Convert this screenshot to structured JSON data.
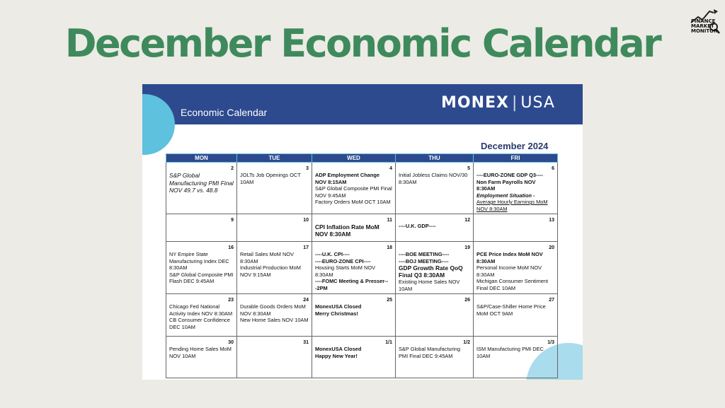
{
  "slide": {
    "title": "December Economic Calendar",
    "logo_lines": [
      "FINANCE",
      "MARKET",
      "MONITOR"
    ]
  },
  "document": {
    "banner_title": "Economic Calendar",
    "brand_left": "MONEX",
    "brand_right": "USA",
    "month_label": "December 2024",
    "weekdays": [
      "MON",
      "TUE",
      "WED",
      "THU",
      "FRI"
    ],
    "weeks": [
      [
        {
          "day": "2",
          "events": [
            "S&P Global Manufacturing PMI Final NOV 49.7 vs. 48.8"
          ]
        },
        {
          "day": "3",
          "events": [
            "JOLTs Job Openings OCT 10AM"
          ]
        },
        {
          "day": "4",
          "events": [
            "ADP Employment Change NOV 8:15AM",
            "S&P Global Composite PMI Final NOV 9:45AM",
            "Factory Orders MoM OCT 10AM"
          ]
        },
        {
          "day": "5",
          "events": [
            "Initial Jobless Claims NOV/30 8:30AM"
          ]
        },
        {
          "day": "6",
          "events": [
            "----EURO-ZONE GDP Q3----",
            "Non Farm Payrolls NOV 8:30AM",
            "Employment Situation -",
            "Average Hourly Earnings MoM NOV 8:30AM"
          ]
        }
      ],
      [
        {
          "day": "9",
          "events": []
        },
        {
          "day": "10",
          "events": []
        },
        {
          "day": "11",
          "events": [
            "CPI Inflation Rate MoM NOV 8:30AM"
          ]
        },
        {
          "day": "12",
          "events": [
            "----U.K. GDP----"
          ]
        },
        {
          "day": "13",
          "events": []
        }
      ],
      [
        {
          "day": "16",
          "events": [
            "NY Empire State Manufacturing Index DEC 8:30AM",
            "S&P Global Composite PMI Flash DEC 9:45AM"
          ]
        },
        {
          "day": "17",
          "events": [
            "Retail Sales MoM NOV 8:30AM",
            "Industrial Production MoM NOV 9:15AM"
          ]
        },
        {
          "day": "18",
          "events": [
            "----U.K. CPI----",
            "----EURO-ZONE CPI----",
            "Housing Starts MoM NOV 8:30AM",
            "----FOMC Meeting & Presser---2PM"
          ]
        },
        {
          "day": "19",
          "events": [
            "----BOE MEETING----",
            "----BOJ MEETING----",
            "GDP Growth Rate QoQ Final Q3 8:30AM",
            "Existing Home Sales NOV 10AM"
          ]
        },
        {
          "day": "20",
          "events": [
            "PCE Price Index MoM NOV 8:30AM",
            "Personal Income MoM NOV 8:30AM",
            "Michigan Consumer Sentiment Final DEC 10AM"
          ]
        }
      ],
      [
        {
          "day": "23",
          "events": [
            "Chicago Fed National Activity Index NOV 8:30AM",
            "CB Consumer Confidence DEC 10AM"
          ]
        },
        {
          "day": "24",
          "events": [
            "Durable Goods Orders MoM NOV 8:30AM",
            "New Home Sales NOV 10AM"
          ]
        },
        {
          "day": "25",
          "events": [
            "MonexUSA Closed",
            "Merry Christmas!"
          ]
        },
        {
          "day": "26",
          "events": []
        },
        {
          "day": "27",
          "events": [
            "S&P/Case-Shiller Home Price MoM OCT 9AM"
          ]
        }
      ],
      [
        {
          "day": "30",
          "events": [
            "Pending Home Sales MoM NOV 10AM"
          ]
        },
        {
          "day": "31",
          "events": []
        },
        {
          "day": "1/1",
          "events": [
            "MonexUSA Closed",
            "Happy New Year!"
          ]
        },
        {
          "day": "1/2",
          "events": [
            "S&P Global Manufacturing PMI Final DEC 9:45AM"
          ]
        },
        {
          "day": "1/3",
          "events": [
            "ISM Manufacturing PMI DEC 10AM"
          ]
        }
      ]
    ]
  }
}
